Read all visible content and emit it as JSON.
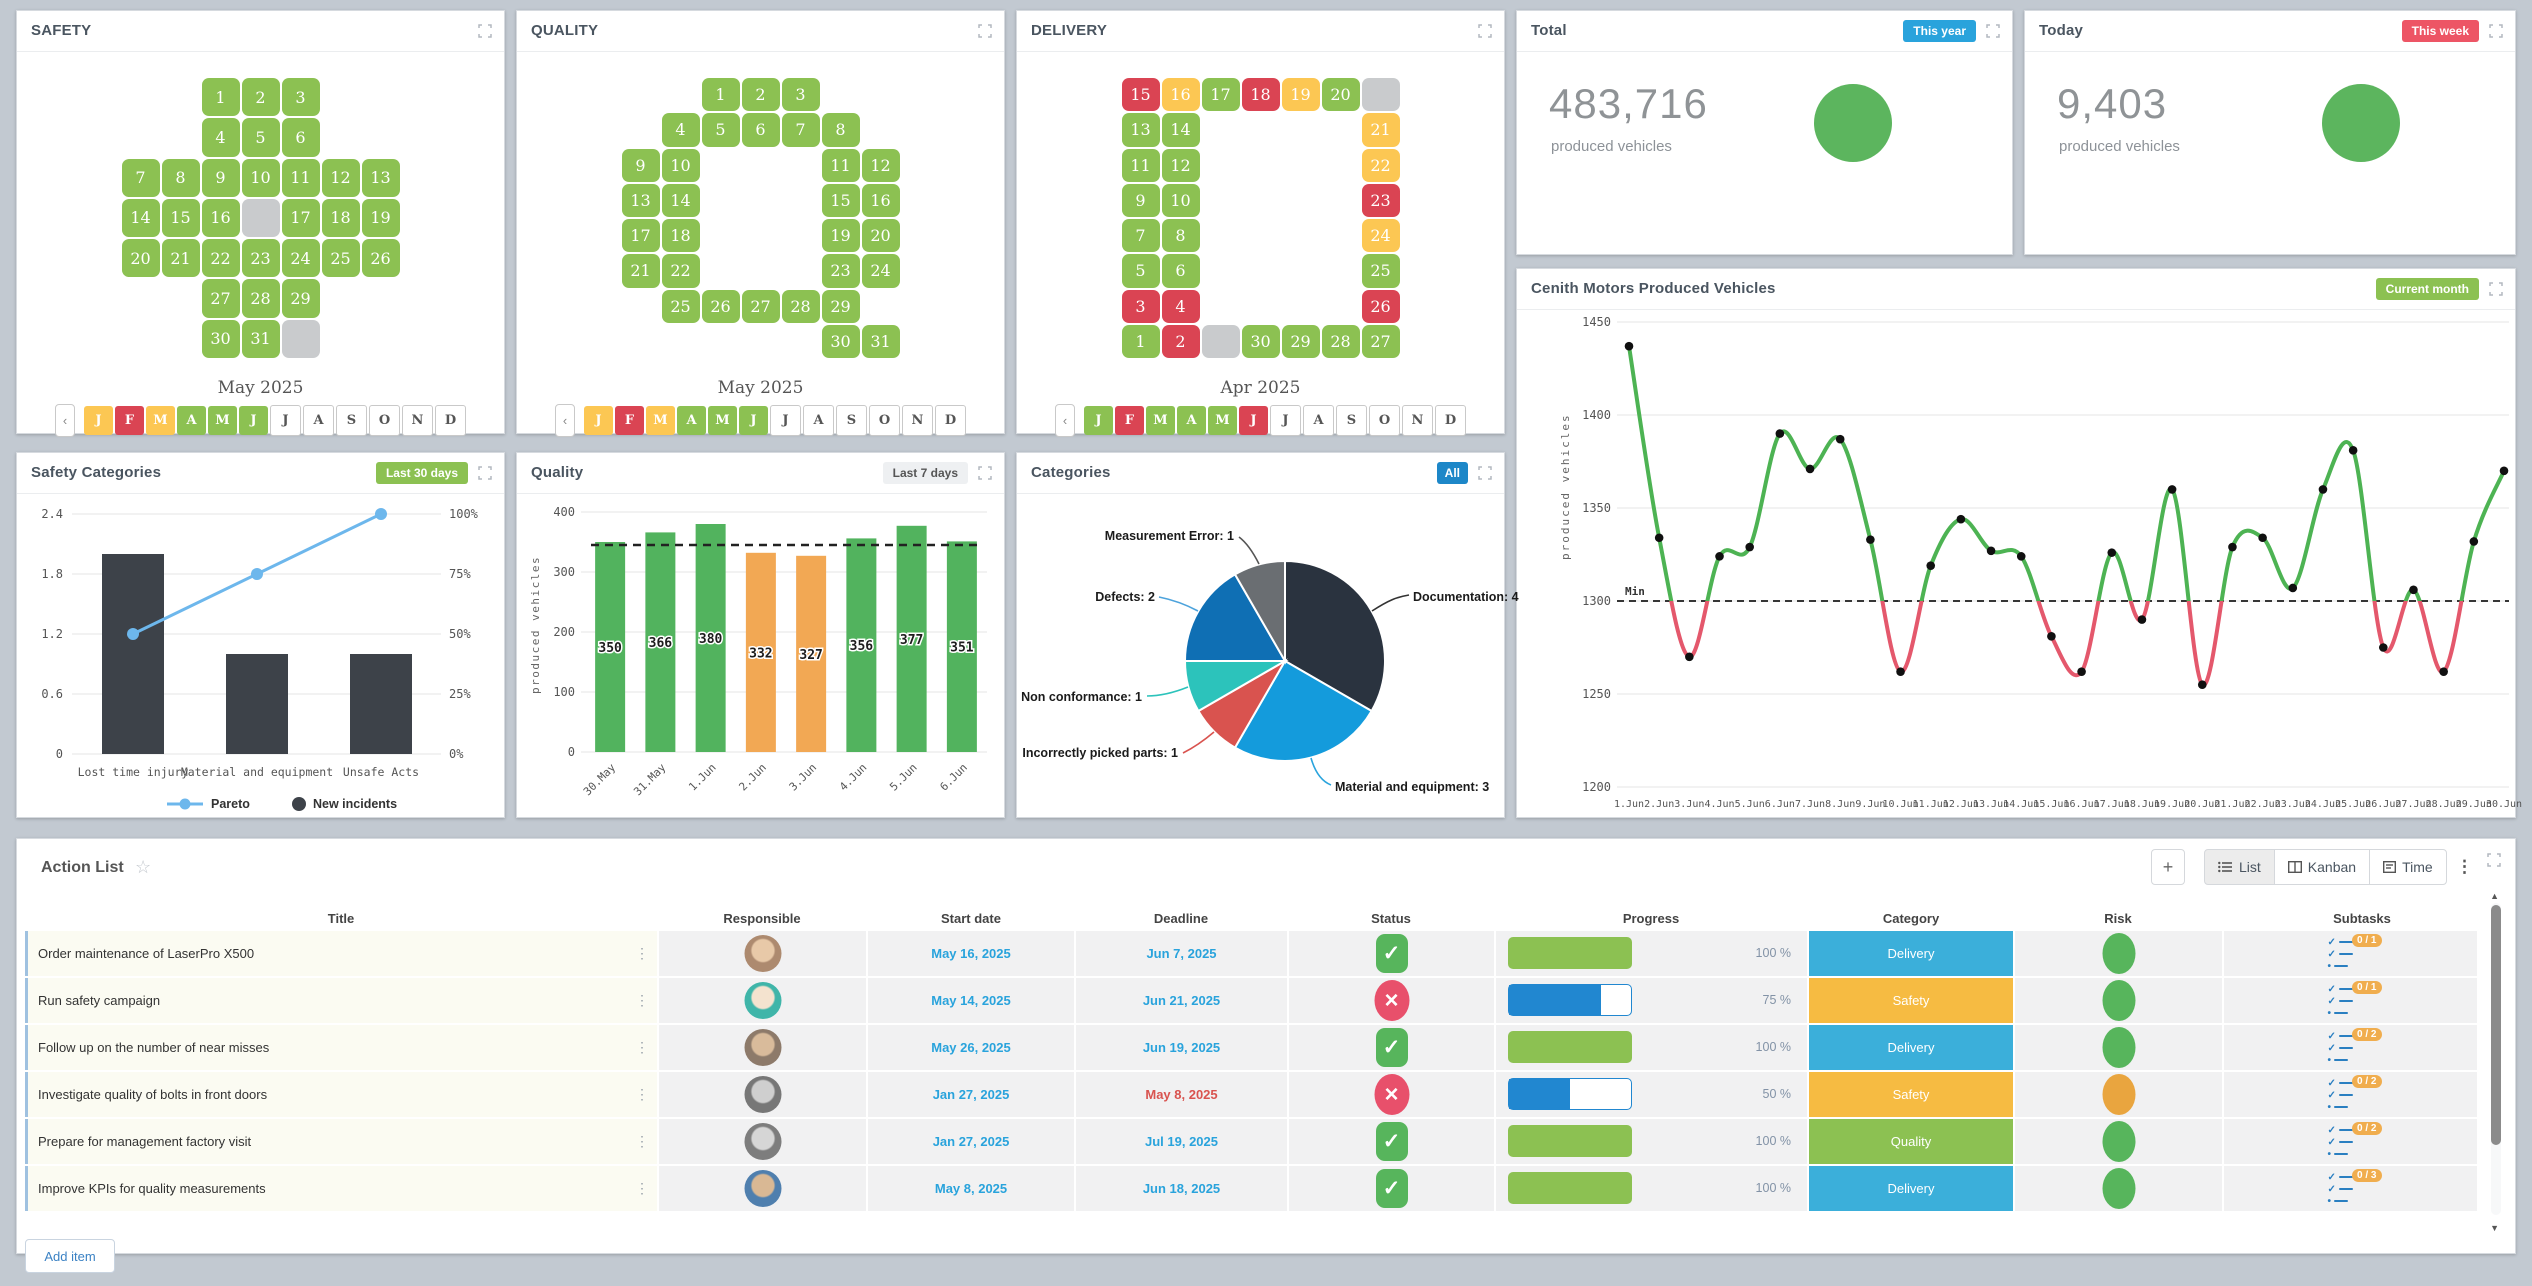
{
  "palette": {
    "g": "#8cc152",
    "y": "#fcc753",
    "r": "#da4453",
    "x": "#c9cbcd",
    "page_bg": "#c2c9d1",
    "date_blue": "#29a3dc",
    "date_red": "#d9534f",
    "risk_green": "#57b55c",
    "risk_orange": "#e9a53f",
    "status_done": "#57b55c",
    "status_blocked": "#e8506b",
    "subtask_badge": "#f0ad4e",
    "progress_green": "#8cc152",
    "progress_blue": "#2187d0",
    "kpi_circle": "#5cb55e"
  },
  "panels": {
    "safety": {
      "title": "SAFETY",
      "month_label": "May 2025",
      "cal": [
        [
          "",
          "",
          "1|g",
          "2|g",
          "3|g",
          "",
          ""
        ],
        [
          "",
          "",
          "4|g",
          "5|g",
          "6|g",
          "",
          ""
        ],
        [
          "7|g",
          "8|g",
          "9|g",
          "10|g",
          "11|g",
          "12|g",
          "13|g"
        ],
        [
          "14|g",
          "15|g",
          "16|g",
          "|x",
          "17|g",
          "18|g",
          "19|g"
        ],
        [
          "20|g",
          "21|g",
          "22|g",
          "23|g",
          "24|g",
          "25|g",
          "26|g"
        ],
        [
          "",
          "",
          "27|g",
          "28|g",
          "29|g",
          "",
          ""
        ],
        [
          "",
          "",
          "30|g",
          "31|g",
          "|x",
          "",
          ""
        ]
      ],
      "months": [
        [
          "J",
          "y"
        ],
        [
          "F",
          "r"
        ],
        [
          "M",
          "y"
        ],
        [
          "A",
          "g"
        ],
        [
          "M",
          "g"
        ],
        [
          "J",
          "g"
        ],
        [
          "J",
          "n"
        ],
        [
          "A",
          "n"
        ],
        [
          "S",
          "n"
        ],
        [
          "O",
          "n"
        ],
        [
          "N",
          "n"
        ],
        [
          "D",
          "n"
        ]
      ],
      "prev": "‹"
    },
    "quality": {
      "title": "QUALITY",
      "month_label": "May 2025",
      "cal": [
        [
          "",
          "",
          "1|g",
          "2|g",
          "3|g",
          "",
          ""
        ],
        [
          "",
          "4|g",
          "5|g",
          "6|g",
          "7|g",
          "8|g",
          ""
        ],
        [
          "9|g",
          "10|g",
          "",
          "",
          "",
          "11|g",
          "12|g"
        ],
        [
          "13|g",
          "14|g",
          "",
          "",
          "",
          "15|g",
          "16|g"
        ],
        [
          "17|g",
          "18|g",
          "",
          "",
          "",
          "19|g",
          "20|g"
        ],
        [
          "21|g",
          "22|g",
          "",
          "",
          "",
          "23|g",
          "24|g"
        ],
        [
          "",
          "25|g",
          "26|g",
          "27|g",
          "28|g",
          "29|g",
          ""
        ],
        [
          "",
          "",
          "",
          "",
          "",
          "30|g",
          "31|g"
        ]
      ],
      "months": [
        [
          "J",
          "y"
        ],
        [
          "F",
          "r"
        ],
        [
          "M",
          "y"
        ],
        [
          "A",
          "g"
        ],
        [
          "M",
          "g"
        ],
        [
          "J",
          "g"
        ],
        [
          "J",
          "n"
        ],
        [
          "A",
          "n"
        ],
        [
          "S",
          "n"
        ],
        [
          "O",
          "n"
        ],
        [
          "N",
          "n"
        ],
        [
          "D",
          "n"
        ]
      ],
      "prev": "‹"
    },
    "delivery": {
      "title": "DELIVERY",
      "month_label": "Apr 2025",
      "cal": [
        [
          "15|r",
          "16|y",
          "17|g",
          "18|r",
          "19|y",
          "20|g",
          "|x"
        ],
        [
          "13|g",
          "14|g",
          "",
          "",
          "",
          "",
          "21|y"
        ],
        [
          "11|g",
          "12|g",
          "",
          "",
          "",
          "",
          "22|y"
        ],
        [
          "9|g",
          "10|g",
          "",
          "",
          "",
          "",
          "23|r"
        ],
        [
          "7|g",
          "8|g",
          "",
          "",
          "",
          "",
          "24|y"
        ],
        [
          "5|g",
          "6|g",
          "",
          "",
          "",
          "",
          "25|g"
        ],
        [
          "3|r",
          "4|r",
          "",
          "",
          "",
          "",
          "26|r"
        ],
        [
          "1|g",
          "2|r",
          "|x",
          "30|g",
          "29|g",
          "28|g",
          "27|g"
        ]
      ],
      "months": [
        [
          "J",
          "g"
        ],
        [
          "F",
          "r"
        ],
        [
          "M",
          "g"
        ],
        [
          "A",
          "g"
        ],
        [
          "M",
          "g"
        ],
        [
          "J",
          "r"
        ],
        [
          "J",
          "n"
        ],
        [
          "A",
          "n"
        ],
        [
          "S",
          "n"
        ],
        [
          "O",
          "n"
        ],
        [
          "N",
          "n"
        ],
        [
          "D",
          "n"
        ]
      ],
      "prev": "‹"
    },
    "total": {
      "title": "Total",
      "badge": {
        "label": "This year",
        "bg": "#29a3dc",
        "fg": "#ffffff"
      },
      "value": "483,716",
      "label": "produced vehicles"
    },
    "today": {
      "title": "Today",
      "badge": {
        "label": "This week",
        "bg": "#ed5565",
        "fg": "#ffffff"
      },
      "value": "9,403",
      "label": "produced vehicles"
    },
    "safety_categories": {
      "title": "Safety Categories",
      "badge": {
        "label": "Last 30 days",
        "bg": "#8cc152",
        "fg": "#ffffff"
      }
    },
    "quality_chart": {
      "title": "Quality",
      "badge": {
        "label": "Last 7 days",
        "bg": "#eef0f2",
        "fg": "#555555"
      }
    },
    "categories": {
      "title": "Categories",
      "badge": {
        "label": "All",
        "bg": "#1d87c8",
        "fg": "#ffffff"
      }
    },
    "production": {
      "title": "Cenith Motors Produced Vehicles",
      "badge": {
        "label": "Current month",
        "bg": "#8cc152",
        "fg": "#ffffff"
      }
    }
  },
  "chart_data": [
    {
      "id": "pareto",
      "type": "bar+line",
      "title": "Safety Categories",
      "categories": [
        "Lost time injury",
        "Material and equipment",
        "Unsafe Acts"
      ],
      "bars": [
        2,
        1,
        1
      ],
      "line_pct": [
        50,
        75,
        100
      ],
      "left_ticks": [
        "0",
        "0.6",
        "1.2",
        "1.8",
        "2.4"
      ],
      "right_ticks": [
        "0%",
        "25%",
        "50%",
        "75%",
        "100%"
      ],
      "bar_color": "#3d4249",
      "line_color": "#6db7ec",
      "legend": [
        "Pareto",
        "New incidents"
      ],
      "legend_position": "bottom"
    },
    {
      "id": "quality-bars",
      "type": "bar",
      "title": "Quality",
      "ylabel": "produced vehicles",
      "categories": [
        "30.May",
        "31.May",
        "1.Jun",
        "2.Jun",
        "3.Jun",
        "4.Jun",
        "5.Jun",
        "6.Jun"
      ],
      "values": [
        350,
        366,
        380,
        332,
        327,
        356,
        377,
        351
      ],
      "colors": [
        "#52b35e",
        "#52b35e",
        "#52b35e",
        "#f2a854",
        "#f2a854",
        "#52b35e",
        "#52b35e",
        "#52b35e"
      ],
      "threshold": 345,
      "yticks": [
        0,
        100,
        200,
        300,
        400
      ],
      "ylim": [
        0,
        400
      ],
      "grid": true
    },
    {
      "id": "categories-pie",
      "type": "pie",
      "title": "Categories",
      "slices": [
        {
          "label": "Documentation",
          "value": 4,
          "color": "#2a333f"
        },
        {
          "label": "Material and equipment",
          "value": 3,
          "color": "#149bdc"
        },
        {
          "label": "Incorrectly picked parts",
          "value": 1,
          "color": "#d9534f"
        },
        {
          "label": "Non conformance",
          "value": 1,
          "color": "#2cc3bb"
        },
        {
          "label": "Defects",
          "value": 2,
          "color": "#0f6fb4"
        },
        {
          "label": "Measurement Error",
          "value": 1,
          "color": "#6a6e72"
        }
      ]
    },
    {
      "id": "production-line",
      "type": "line",
      "title": "Cenith Motors Produced Vehicles",
      "ylabel": "produced vehicles",
      "x": [
        "1.Jun",
        "2.Jun",
        "3.Jun",
        "4.Jun",
        "5.Jun",
        "6.Jun",
        "7.Jun",
        "8.Jun",
        "9.Jun",
        "10.Jun",
        "11.Jun",
        "12.Jun",
        "13.Jun",
        "14.Jun",
        "15.Jun",
        "16.Jun",
        "17.Jun",
        "18.Jun",
        "19.Jun",
        "20.Jun",
        "21.Jun",
        "22.Jun",
        "23.Jun",
        "24.Jun",
        "25.Jun",
        "26.Jun",
        "27.Jun",
        "28.Jun",
        "29.Jun",
        "30.Jun"
      ],
      "values": [
        1437,
        1334,
        1270,
        1324,
        1329,
        1390,
        1371,
        1387,
        1333,
        1262,
        1319,
        1344,
        1327,
        1324,
        1281,
        1262,
        1326,
        1290,
        1360,
        1255,
        1329,
        1334,
        1307,
        1360,
        1381,
        1275,
        1306,
        1262,
        1332,
        1370
      ],
      "min_line": 1300,
      "min_label": "Min",
      "yticks": [
        1200,
        1250,
        1300,
        1350,
        1400,
        1450
      ],
      "ylim": [
        1200,
        1450
      ],
      "color_above": "#4db353",
      "color_below": "#e4586c",
      "grid": true
    }
  ],
  "action_list": {
    "title": "Action List",
    "toolbar": {
      "add_label": "+",
      "views": [
        "List",
        "Kanban",
        "Time"
      ],
      "selected_view": "List"
    },
    "columns": [
      "Title",
      "Responsible",
      "Start date",
      "Deadline",
      "Status",
      "Progress",
      "Category",
      "Risk",
      "Subtasks"
    ],
    "add_item_label": "Add item",
    "rows": [
      {
        "title": "Order maintenance of LaserPro X500",
        "avatar": {
          "base": "#ad8a6f",
          "face": "#e8c9a8"
        },
        "start": "May 16, 2025",
        "deadline": "Jun 7, 2025",
        "deadline_overdue": false,
        "status": "done",
        "progress": 100,
        "category": "Delivery",
        "category_color": "#3bafda",
        "risk": "green",
        "subtasks": "0 / 1"
      },
      {
        "title": "Run safety campaign",
        "avatar": {
          "base": "#3fb5a9",
          "face": "#f4e3cf"
        },
        "start": "May 14, 2025",
        "deadline": "Jun 21, 2025",
        "deadline_overdue": false,
        "status": "blocked",
        "progress": 75,
        "category": "Safety",
        "category_color": "#f6bb42",
        "risk": "green",
        "subtasks": "0 / 1"
      },
      {
        "title": "Follow up on the number of near misses",
        "avatar": {
          "base": "#8d7a6a",
          "face": "#d9bb9b"
        },
        "start": "May 26, 2025",
        "deadline": "Jun 19, 2025",
        "deadline_overdue": false,
        "status": "done",
        "progress": 100,
        "category": "Delivery",
        "category_color": "#3bafda",
        "risk": "green",
        "subtasks": "0 / 2"
      },
      {
        "title": "Investigate quality of bolts in front doors",
        "avatar": {
          "base": "#777777",
          "face": "#cfcfcf"
        },
        "start": "Jan 27, 2025",
        "deadline": "May 8, 2025",
        "deadline_overdue": true,
        "status": "blocked",
        "progress": 50,
        "category": "Safety",
        "category_color": "#f6bb42",
        "risk": "orange",
        "subtasks": "0 / 2"
      },
      {
        "title": "Prepare for management factory visit",
        "avatar": {
          "base": "#7d7d7d",
          "face": "#d6d6d6"
        },
        "start": "Jan 27, 2025",
        "deadline": "Jul 19, 2025",
        "deadline_overdue": false,
        "status": "done",
        "progress": 100,
        "category": "Quality",
        "category_color": "#8cc152",
        "risk": "green",
        "subtasks": "0 / 2"
      },
      {
        "title": "Improve KPIs for quality measurements",
        "avatar": {
          "base": "#4f7fae",
          "face": "#d9b894"
        },
        "start": "May 8, 2025",
        "deadline": "Jun 18, 2025",
        "deadline_overdue": false,
        "status": "done",
        "progress": 100,
        "category": "Delivery",
        "category_color": "#3bafda",
        "risk": "green",
        "subtasks": "0 / 3"
      }
    ]
  }
}
